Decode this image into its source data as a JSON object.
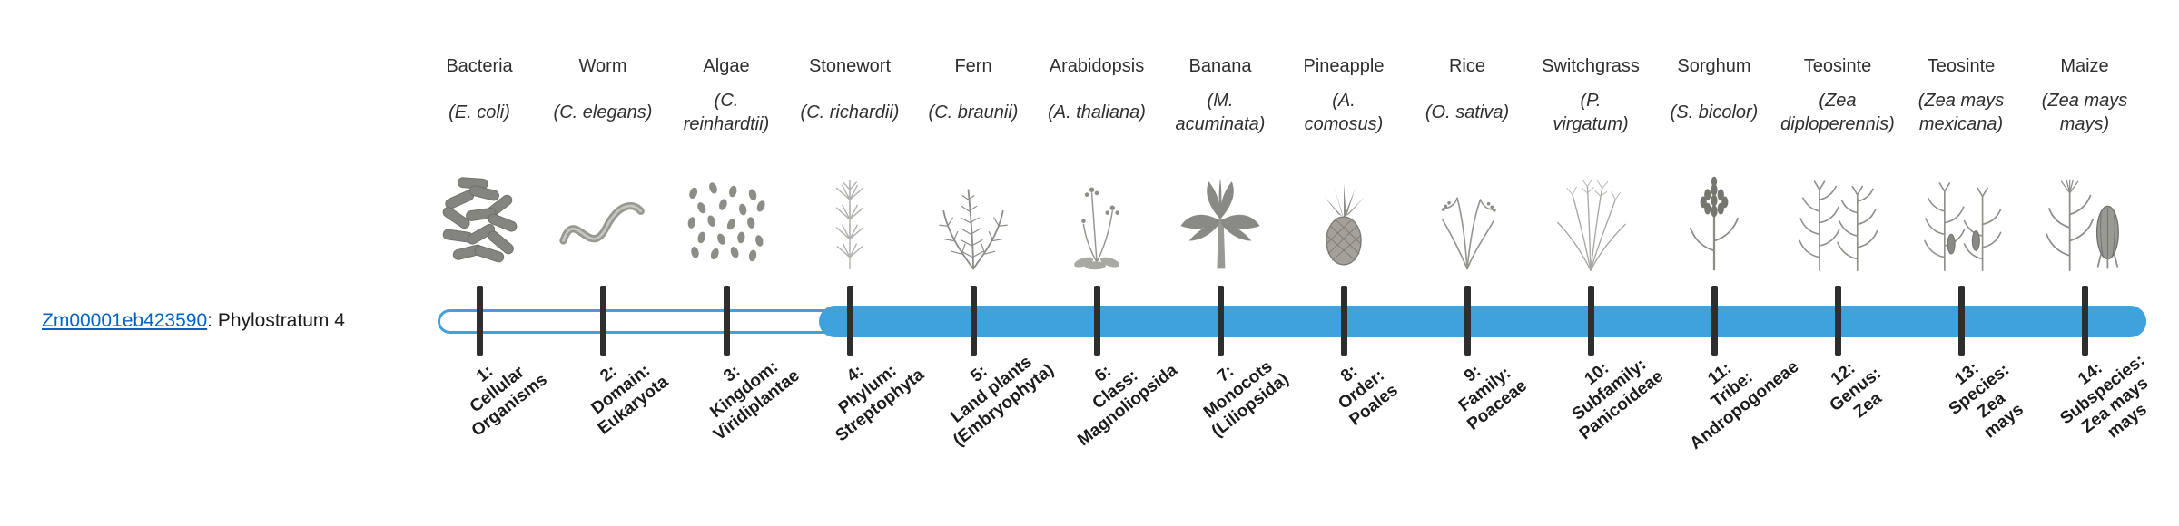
{
  "gene": {
    "id": "Zm00001eb423590",
    "suffix": ": Phylostratum 4",
    "link_color": "#0563C1"
  },
  "bar": {
    "color": "#3FA2DD",
    "filled_from_rank": 4,
    "total_ranks": 14
  },
  "organisms": [
    {
      "rank": 1,
      "common_name": "Bacteria",
      "scientific_name": "(E. coli)",
      "illustration": "bacteria",
      "stratum_label": "1:\nCellular\nOrganisms"
    },
    {
      "rank": 2,
      "common_name": "Worm",
      "scientific_name": "(C. elegans)",
      "illustration": "worm",
      "stratum_label": "2:\nDomain:\nEukaryota"
    },
    {
      "rank": 3,
      "common_name": "Algae",
      "scientific_name": "(C.\nreinhardtii)",
      "illustration": "algae",
      "stratum_label": "3:\nKingdom:\nViridiplantae"
    },
    {
      "rank": 4,
      "common_name": "Stonewort",
      "scientific_name": "(C. richardii)",
      "illustration": "stonewort",
      "stratum_label": "4:\nPhylum:\nStreptophyta"
    },
    {
      "rank": 5,
      "common_name": "Fern",
      "scientific_name": "(C. braunii)",
      "illustration": "fern",
      "stratum_label": "5:\nLand plants\n(Embryophyta)"
    },
    {
      "rank": 6,
      "common_name": "Arabidopsis",
      "scientific_name": "(A. thaliana)",
      "illustration": "arabidopsis",
      "stratum_label": "6:\nClass:\nMagnoliopsida"
    },
    {
      "rank": 7,
      "common_name": "Banana",
      "scientific_name": "(M.\nacuminata)",
      "illustration": "banana",
      "stratum_label": "7:\nMonocots\n(Liliopsida)"
    },
    {
      "rank": 8,
      "common_name": "Pineapple",
      "scientific_name": "(A.\ncomosus)",
      "illustration": "pineapple",
      "stratum_label": "8:\nOrder:\nPoales"
    },
    {
      "rank": 9,
      "common_name": "Rice",
      "scientific_name": "(O. sativa)",
      "illustration": "rice",
      "stratum_label": "9:\nFamily:\nPoaceae"
    },
    {
      "rank": 10,
      "common_name": "Switchgrass",
      "scientific_name": "(P.\nvirgatum)",
      "illustration": "switchgrass",
      "stratum_label": "10:\nSubfamily:\nPanicoideae"
    },
    {
      "rank": 11,
      "common_name": "Sorghum",
      "scientific_name": "(S. bicolor)",
      "illustration": "sorghum",
      "stratum_label": "11:\nTribe:\nAndropogoneae"
    },
    {
      "rank": 12,
      "common_name": "Teosinte",
      "scientific_name": "(Zea\ndiploperennis)",
      "illustration": "teosinte-diploperennis",
      "stratum_label": "12:\nGenus:\nZea"
    },
    {
      "rank": 13,
      "common_name": "Teosinte",
      "scientific_name": "(Zea mays\nmexicana)",
      "illustration": "teosinte-mexicana",
      "stratum_label": "13:\nSpecies:\nZea\nmays"
    },
    {
      "rank": 14,
      "common_name": "Maize",
      "scientific_name": "(Zea mays\nmays)",
      "illustration": "maize",
      "stratum_label": "14:\nSubspecies:\nZea mays\nmays"
    }
  ]
}
